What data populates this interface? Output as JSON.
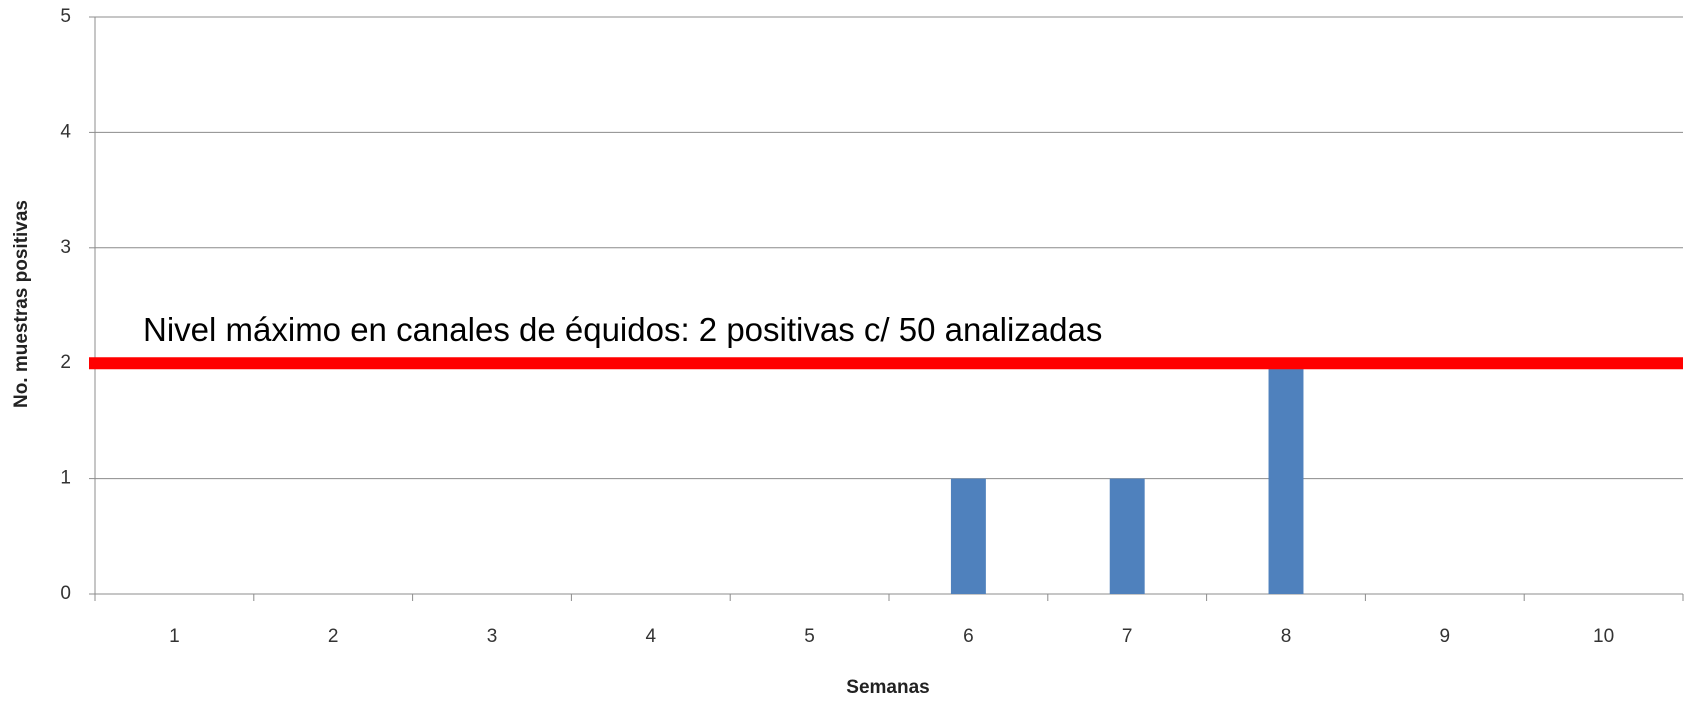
{
  "chart_data": {
    "type": "bar",
    "categories": [
      "1",
      "2",
      "3",
      "4",
      "5",
      "6",
      "7",
      "8",
      "9",
      "10"
    ],
    "values": [
      0,
      0,
      0,
      0,
      0,
      1,
      1,
      2,
      0,
      0
    ],
    "color": "#4f81bd",
    "xlabel": "Semanas",
    "ylabel": "No. muestras positivas",
    "ylim": [
      0,
      5
    ],
    "yticks": [
      0,
      1,
      2,
      3,
      4,
      5
    ],
    "grid": true,
    "threshold": {
      "value": 2,
      "color": "#ff0000",
      "label": "Nivel máximo en canales de équidos:  2 positivas c/ 50 analizadas"
    }
  }
}
